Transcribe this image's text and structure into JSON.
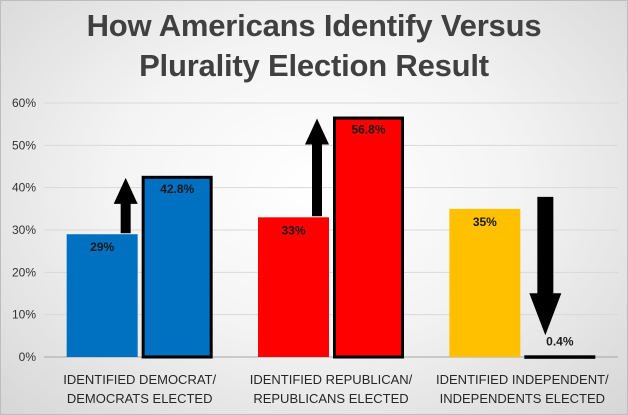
{
  "chart_data": {
    "type": "bar",
    "title_lines": [
      "How Americans Identify Versus",
      "Plurality Election Result"
    ],
    "categories": [
      [
        "IDENTIFIED DEMOCRAT/",
        "DEMOCRATS ELECTED"
      ],
      [
        "IDENTIFIED REPUBLICAN/",
        "REPUBLICANS ELECTED"
      ],
      [
        "IDENTIFIED INDEPENDENT/",
        "INDEPENDENTS ELECTED"
      ]
    ],
    "series": [
      {
        "values": [
          29,
          33,
          35
        ],
        "labels": [
          "29%",
          "33%",
          "35%"
        ]
      },
      {
        "values": [
          42.8,
          56.8,
          0.4
        ],
        "labels": [
          "42.8%",
          "56.8%",
          "0.4%"
        ]
      }
    ],
    "bar_colors": [
      "#0070C0",
      "#FF0000",
      "#FFC000"
    ],
    "arrows": [
      "up",
      "up",
      "down"
    ],
    "ylim": [
      0,
      60
    ],
    "yticks": [
      0,
      10,
      20,
      30,
      40,
      50,
      60
    ],
    "ytick_labels": [
      "0%",
      "10%",
      "20%",
      "30%",
      "40%",
      "50%",
      "60%"
    ],
    "grid": true,
    "legend": "none"
  }
}
